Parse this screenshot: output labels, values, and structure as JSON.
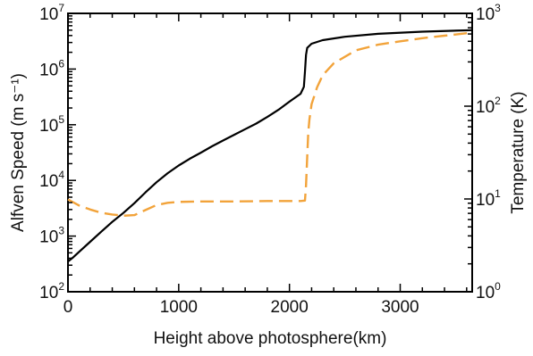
{
  "chart_data": {
    "type": "line",
    "title": "",
    "xlabel": "Height above photosphere(km)",
    "ylabel_left": "Alfven Speed (m s⁻¹)",
    "ylabel_right": "Temperature (K)",
    "xlim": [
      0,
      3650
    ],
    "ylim_left": [
      100,
      10000000
    ],
    "ylim_right": [
      1,
      1000
    ],
    "yscale_left": "log",
    "yscale_right": "log",
    "x_ticks": [
      "0",
      "1000",
      "2000",
      "3000"
    ],
    "y_left_ticks": [
      {
        "base": "10",
        "exp": "2"
      },
      {
        "base": "10",
        "exp": "3"
      },
      {
        "base": "10",
        "exp": "4"
      },
      {
        "base": "10",
        "exp": "5"
      },
      {
        "base": "10",
        "exp": "6"
      },
      {
        "base": "10",
        "exp": "7"
      }
    ],
    "y_right_ticks": [
      {
        "base": "10",
        "exp": "0"
      },
      {
        "base": "10",
        "exp": "1"
      },
      {
        "base": "10",
        "exp": "2"
      },
      {
        "base": "10",
        "exp": "3"
      }
    ],
    "grid": false,
    "series": [
      {
        "axis": "left",
        "color": "#000000",
        "style": "solid",
        "points": [
          [
            0,
            350
          ],
          [
            50,
            420
          ],
          [
            100,
            520
          ],
          [
            200,
            790
          ],
          [
            300,
            1200
          ],
          [
            400,
            1800
          ],
          [
            500,
            2600
          ],
          [
            600,
            3900
          ],
          [
            700,
            6100
          ],
          [
            800,
            9300
          ],
          [
            900,
            13500
          ],
          [
            1000,
            18500
          ],
          [
            1100,
            24500
          ],
          [
            1200,
            31500
          ],
          [
            1300,
            41000
          ],
          [
            1400,
            52000
          ],
          [
            1500,
            66000
          ],
          [
            1600,
            83000
          ],
          [
            1700,
            105000
          ],
          [
            1800,
            138000
          ],
          [
            1900,
            185000
          ],
          [
            2000,
            260000
          ],
          [
            2100,
            360000
          ],
          [
            2130,
            480000
          ],
          [
            2140,
            900000
          ],
          [
            2150,
            1800000
          ],
          [
            2160,
            2400000
          ],
          [
            2200,
            2850000
          ],
          [
            2300,
            3300000
          ],
          [
            2500,
            3800000
          ],
          [
            2800,
            4300000
          ],
          [
            3200,
            4700000
          ],
          [
            3650,
            5000000
          ]
        ]
      },
      {
        "axis": "right",
        "color": "#F2A33A",
        "style": "dashed",
        "points": [
          [
            0,
            9.9
          ],
          [
            100,
            8.5
          ],
          [
            200,
            7.7
          ],
          [
            300,
            7.1
          ],
          [
            400,
            6.8
          ],
          [
            500,
            6.6
          ],
          [
            600,
            6.7
          ],
          [
            700,
            7.6
          ],
          [
            800,
            8.6
          ],
          [
            900,
            9.1
          ],
          [
            1000,
            9.3
          ],
          [
            1200,
            9.4
          ],
          [
            1500,
            9.4
          ],
          [
            1800,
            9.5
          ],
          [
            2100,
            9.5
          ],
          [
            2140,
            9.6
          ],
          [
            2150,
            14
          ],
          [
            2160,
            28
          ],
          [
            2170,
            52
          ],
          [
            2180,
            72
          ],
          [
            2200,
            105
          ],
          [
            2250,
            160
          ],
          [
            2300,
            215
          ],
          [
            2400,
            290
          ],
          [
            2600,
            400
          ],
          [
            2800,
            460
          ],
          [
            3000,
            500
          ],
          [
            3200,
            540
          ],
          [
            3400,
            575
          ],
          [
            3650,
            620
          ]
        ]
      }
    ]
  }
}
